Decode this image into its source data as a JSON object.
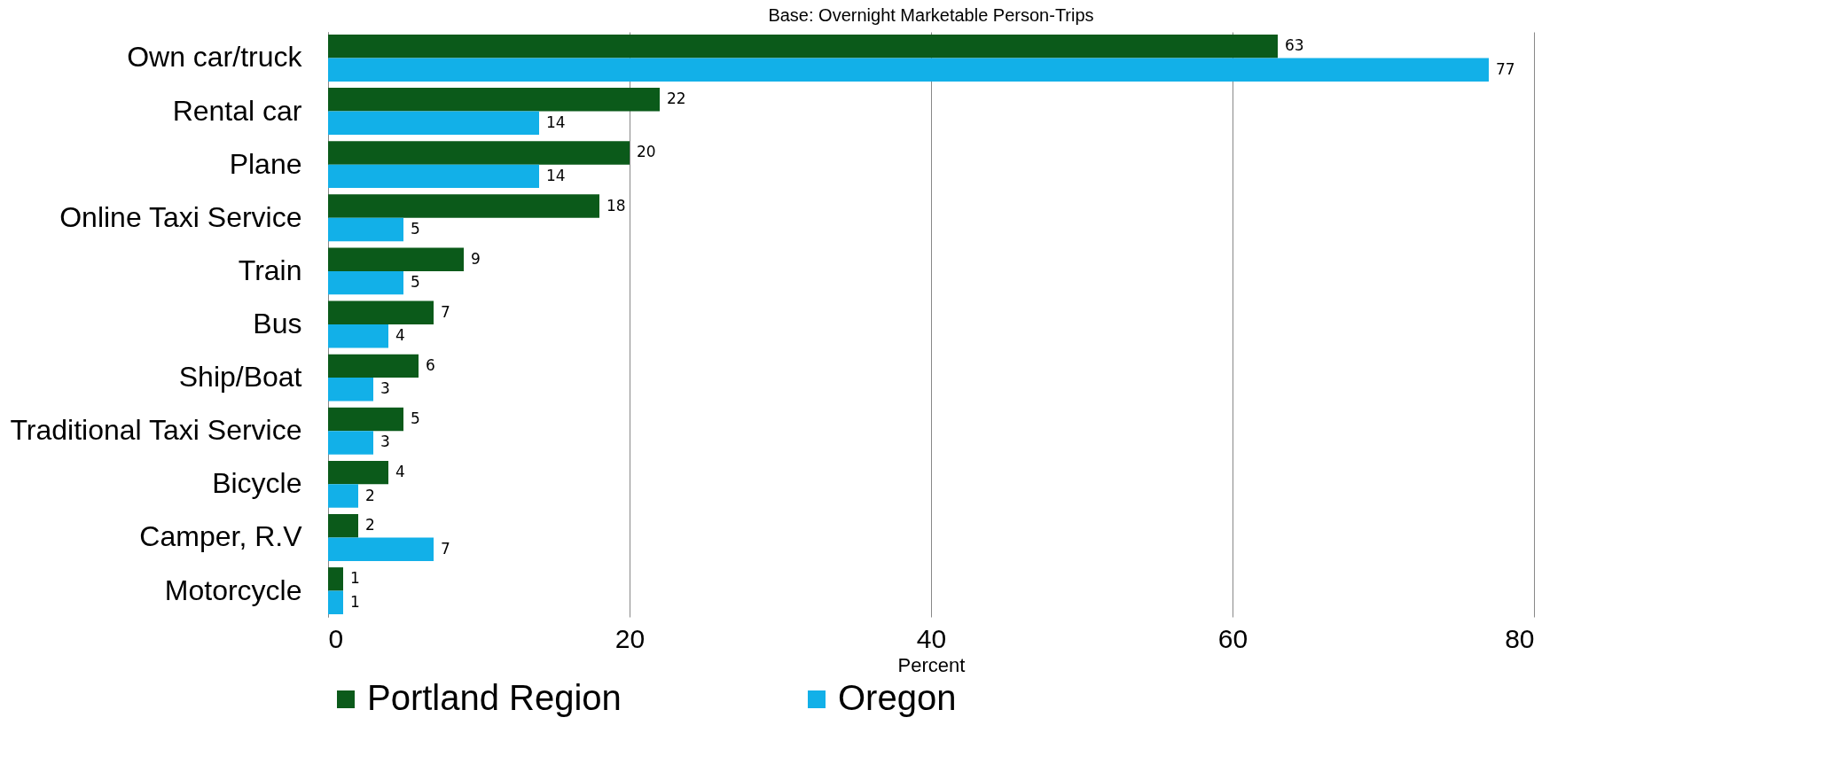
{
  "chart_data": {
    "type": "bar",
    "orientation": "horizontal",
    "title": "Base: Overnight Marketable Person-Trips",
    "xlabel": "Percent",
    "categories": [
      "Own car/truck",
      "Rental car",
      "Plane",
      "Online Taxi Service",
      "Train",
      "Bus",
      "Ship/Boat",
      "Traditional Taxi Service",
      "Bicycle",
      "Camper, R.V",
      "Motorcycle"
    ],
    "series": [
      {
        "name": "Portland Region",
        "color": "#0b5a1a",
        "values": [
          63,
          22,
          20,
          18,
          9,
          7,
          6,
          5,
          4,
          2,
          1
        ]
      },
      {
        "name": "Oregon",
        "color": "#12b0e8",
        "values": [
          77,
          14,
          14,
          5,
          5,
          4,
          3,
          3,
          2,
          7,
          1
        ]
      }
    ],
    "xlim": [
      0,
      80
    ],
    "xticks": [
      0,
      20,
      40,
      60,
      80
    ],
    "grid": "x",
    "legend": "bottom",
    "data_labels": true
  }
}
